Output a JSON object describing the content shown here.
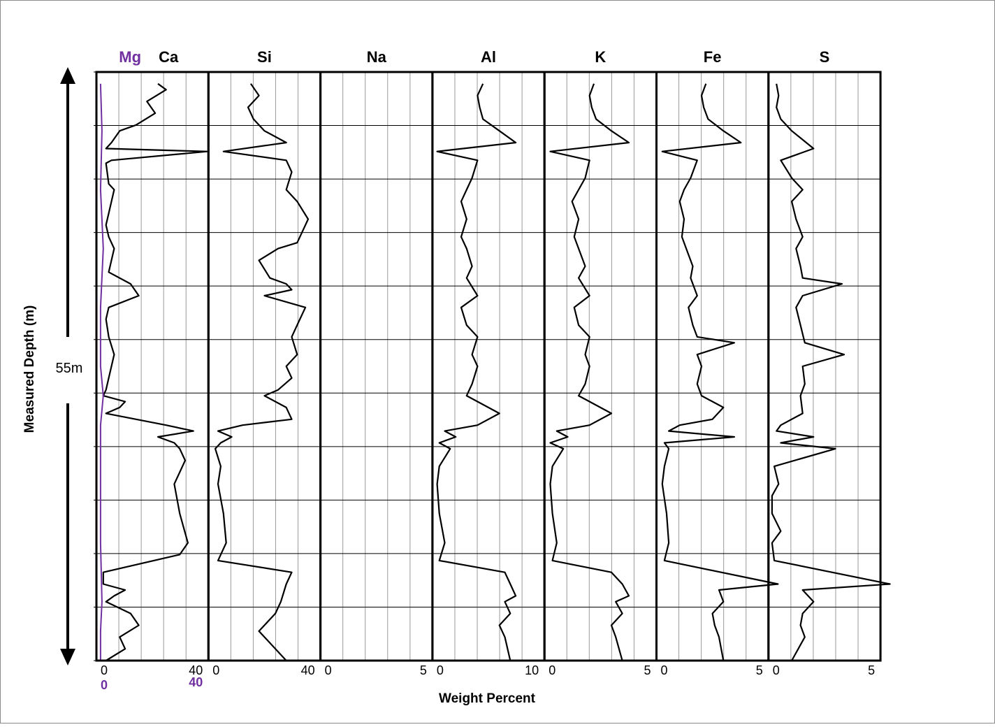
{
  "chart_data": {
    "type": "line",
    "xlabel": "Weight Percent",
    "ylabel": "Measured Depth (m)",
    "depth_annotation": "55m",
    "grid": true,
    "colors": {
      "line": "#000000",
      "mg": "#7030a0",
      "grid": "#9a9a9a",
      "border": "#000000"
    },
    "tracks": [
      {
        "name": "Ca",
        "overlay_name": "Mg",
        "xlim": [
          0,
          40
        ],
        "x_tick_labels": {
          "left": "0",
          "right": "40"
        },
        "overlay_tick_labels": {
          "left": "0",
          "right": "40"
        },
        "series": [
          {
            "name": "Ca",
            "depth_fraction": [
              0.02,
              0.03,
              0.05,
              0.07,
              0.09,
              0.1,
              0.12,
              0.13,
              0.135,
              0.15,
              0.155,
              0.19,
              0.2,
              0.22,
              0.24,
              0.26,
              0.28,
              0.3,
              0.32,
              0.34,
              0.36,
              0.38,
              0.4,
              0.42,
              0.45,
              0.48,
              0.5,
              0.52,
              0.54,
              0.55,
              0.56,
              0.57,
              0.58,
              0.6,
              0.61,
              0.62,
              0.63,
              0.64,
              0.66,
              0.7,
              0.75,
              0.8,
              0.82,
              0.85,
              0.87,
              0.88,
              0.89,
              0.9,
              0.92,
              0.94,
              0.96,
              0.98,
              1.0
            ],
            "values": [
              22,
              25,
              18,
              21,
              14,
              8,
              5,
              3,
              40,
              5,
              3,
              4,
              6,
              5,
              4,
              3,
              4,
              6,
              5,
              4,
              12,
              15,
              4,
              3,
              4,
              6,
              5,
              4,
              3,
              2,
              10,
              8,
              3,
              25,
              35,
              22,
              28,
              30,
              32,
              28,
              30,
              33,
              30,
              2,
              2,
              10,
              6,
              3,
              12,
              15,
              8,
              10,
              3
            ]
          },
          {
            "name": "Mg",
            "depth_fraction": [
              0.02,
              0.1,
              0.2,
              0.3,
              0.4,
              0.5,
              0.55,
              0.6,
              0.7,
              0.8,
              0.9,
              0.95,
              1.0
            ],
            "values": [
              1,
              1.5,
              1,
              2,
              1,
              1,
              2,
              1,
              1,
              1,
              1.5,
              1,
              1
            ]
          }
        ]
      },
      {
        "name": "Si",
        "xlim": [
          0,
          40
        ],
        "x_tick_labels": {
          "left": "0",
          "right": "40"
        },
        "series": [
          {
            "name": "Si",
            "depth_fraction": [
              0.02,
              0.04,
              0.06,
              0.08,
              0.1,
              0.12,
              0.135,
              0.15,
              0.17,
              0.2,
              0.22,
              0.25,
              0.27,
              0.29,
              0.3,
              0.32,
              0.35,
              0.36,
              0.37,
              0.38,
              0.4,
              0.42,
              0.45,
              0.48,
              0.5,
              0.52,
              0.54,
              0.55,
              0.57,
              0.59,
              0.6,
              0.61,
              0.62,
              0.63,
              0.64,
              0.67,
              0.7,
              0.75,
              0.8,
              0.83,
              0.85,
              0.87,
              0.9,
              0.92,
              0.95,
              0.97,
              1.0
            ],
            "values": [
              15,
              18,
              14,
              16,
              20,
              28,
              5,
              28,
              30,
              28,
              32,
              36,
              34,
              32,
              25,
              18,
              22,
              28,
              30,
              20,
              35,
              33,
              30,
              32,
              28,
              30,
              25,
              20,
              28,
              30,
              12,
              3,
              8,
              4,
              2,
              4,
              3,
              5,
              6,
              3,
              30,
              28,
              26,
              24,
              18,
              22,
              28
            ]
          }
        ]
      },
      {
        "name": "Na",
        "xlim": [
          0,
          5
        ],
        "x_tick_labels": {
          "left": "0",
          "right": "5"
        },
        "series": []
      },
      {
        "name": "Al",
        "xlim": [
          0,
          10
        ],
        "x_tick_labels": {
          "left": "0",
          "right": "10"
        },
        "series": [
          {
            "name": "Al",
            "depth_fraction": [
              0.02,
              0.04,
              0.06,
              0.08,
              0.1,
              0.12,
              0.135,
              0.15,
              0.18,
              0.2,
              0.22,
              0.25,
              0.28,
              0.3,
              0.33,
              0.35,
              0.38,
              0.4,
              0.43,
              0.45,
              0.48,
              0.5,
              0.53,
              0.55,
              0.56,
              0.58,
              0.6,
              0.61,
              0.62,
              0.63,
              0.64,
              0.67,
              0.7,
              0.75,
              0.8,
              0.83,
              0.85,
              0.87,
              0.89,
              0.9,
              0.92,
              0.94,
              0.96,
              1.0
            ],
            "values": [
              4.5,
              4,
              4.2,
              4.5,
              6,
              7.5,
              0.3,
              4,
              3.5,
              3,
              2.5,
              3,
              2.5,
              3,
              3.5,
              3,
              4,
              2.5,
              3,
              4,
              3.5,
              4,
              3.5,
              3,
              4,
              6,
              4,
              1,
              2,
              0.5,
              1.5,
              0.5,
              0.3,
              0.5,
              1,
              0.5,
              6.5,
              7,
              7.5,
              6.5,
              7,
              6,
              6.5,
              7
            ]
          }
        ]
      },
      {
        "name": "K",
        "xlim": [
          0,
          5
        ],
        "x_tick_labels": {
          "left": "0",
          "right": "5"
        },
        "series": [
          {
            "name": "K",
            "depth_fraction": [
              0.02,
              0.04,
              0.06,
              0.08,
              0.1,
              0.12,
              0.135,
              0.15,
              0.18,
              0.2,
              0.22,
              0.25,
              0.28,
              0.3,
              0.33,
              0.35,
              0.38,
              0.4,
              0.43,
              0.45,
              0.48,
              0.5,
              0.53,
              0.55,
              0.56,
              0.58,
              0.6,
              0.61,
              0.62,
              0.63,
              0.64,
              0.67,
              0.7,
              0.75,
              0.8,
              0.83,
              0.85,
              0.87,
              0.89,
              0.9,
              0.92,
              0.94,
              0.96,
              1.0
            ],
            "values": [
              2.2,
              2,
              2.1,
              2.3,
              3,
              3.8,
              0.2,
              2,
              1.8,
              1.5,
              1.2,
              1.5,
              1.3,
              1.5,
              1.8,
              1.5,
              2,
              1.3,
              1.5,
              2,
              1.8,
              2,
              1.8,
              1.5,
              2,
              3,
              2,
              0.5,
              1,
              0.2,
              0.8,
              0.3,
              0.2,
              0.3,
              0.5,
              0.3,
              3,
              3.5,
              3.8,
              3.2,
              3.5,
              3,
              3.2,
              3.5
            ]
          }
        ]
      },
      {
        "name": "Fe",
        "xlim": [
          0,
          5
        ],
        "x_tick_labels": {
          "left": "0",
          "right": "5"
        },
        "series": [
          {
            "name": "Fe",
            "depth_fraction": [
              0.02,
              0.04,
              0.06,
              0.08,
              0.1,
              0.12,
              0.135,
              0.15,
              0.18,
              0.2,
              0.22,
              0.25,
              0.28,
              0.3,
              0.33,
              0.35,
              0.38,
              0.4,
              0.43,
              0.45,
              0.46,
              0.48,
              0.5,
              0.53,
              0.55,
              0.57,
              0.59,
              0.6,
              0.61,
              0.62,
              0.63,
              0.64,
              0.67,
              0.7,
              0.75,
              0.8,
              0.83,
              0.87,
              0.88,
              0.9,
              0.92,
              0.94,
              0.96,
              1.0
            ],
            "values": [
              2.2,
              2,
              2.1,
              2.3,
              3,
              3.8,
              0.2,
              1.8,
              1.5,
              1.2,
              1,
              1.2,
              1.1,
              1.3,
              1.6,
              1.5,
              1.8,
              1.4,
              1.6,
              1.8,
              3.5,
              1.8,
              2,
              1.8,
              2,
              3,
              2.5,
              1,
              0.5,
              3.5,
              0.3,
              0.5,
              0.3,
              0.2,
              0.4,
              0.5,
              0.3,
              5.5,
              2.8,
              3,
              2.5,
              2.6,
              2.8,
              3
            ]
          }
        ]
      },
      {
        "name": "S",
        "xlim": [
          0,
          5
        ],
        "x_tick_labels": {
          "left": "0",
          "right": "5"
        },
        "series": [
          {
            "name": "S",
            "depth_fraction": [
              0.02,
              0.04,
              0.06,
              0.08,
              0.1,
              0.13,
              0.15,
              0.18,
              0.2,
              0.22,
              0.25,
              0.28,
              0.3,
              0.33,
              0.35,
              0.36,
              0.38,
              0.4,
              0.43,
              0.46,
              0.48,
              0.5,
              0.53,
              0.55,
              0.58,
              0.6,
              0.61,
              0.62,
              0.63,
              0.64,
              0.67,
              0.7,
              0.72,
              0.75,
              0.78,
              0.8,
              0.83,
              0.87,
              0.88,
              0.9,
              0.92,
              0.94,
              0.96,
              1.0
            ],
            "values": [
              0.3,
              0.4,
              0.3,
              0.5,
              1,
              2,
              0.5,
              1,
              1.5,
              1,
              1.2,
              1.5,
              1.2,
              1.4,
              1.5,
              3.3,
              1.5,
              1.2,
              1.4,
              1.6,
              3.4,
              1.5,
              1.6,
              1.4,
              1.5,
              0.5,
              0.3,
              2,
              0.5,
              3,
              0.2,
              0.4,
              0.1,
              0.1,
              0.5,
              0.1,
              0.2,
              5.5,
              1.5,
              2,
              1.5,
              1.4,
              1.6,
              1
            ]
          }
        ]
      }
    ]
  }
}
